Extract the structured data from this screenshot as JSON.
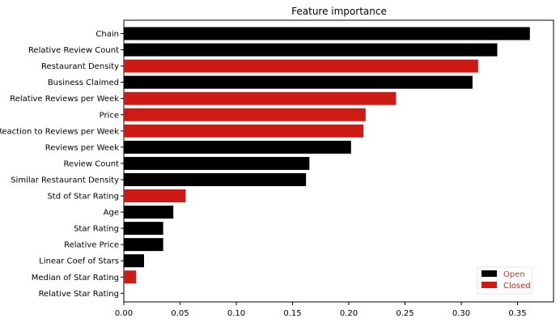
{
  "chart_data": {
    "type": "bar",
    "orientation": "horizontal",
    "title": "Feature importance",
    "xlabel": "",
    "ylabel": "",
    "xlim": [
      0,
      0.37
    ],
    "x_ticks": [
      "0.00",
      "0.05",
      "0.10",
      "0.15",
      "0.20",
      "0.25",
      "0.30",
      "0.35"
    ],
    "grid": false,
    "legend_position": "bottom-right",
    "series": [
      {
        "name": "Open",
        "color": "#000000"
      },
      {
        "name": "Closed",
        "color": "#cc1a14"
      }
    ],
    "categories": [
      "Chain",
      "Relative Review Count",
      "Restaurant Density",
      "Business Claimed",
      "Relative Reviews per Week",
      "Price",
      "Reaction to Reviews per Week",
      "Reviews per Week",
      "Review Count",
      "Similar Restaurant Density",
      "Std of Star Rating",
      "Age",
      "Star Rating",
      "Relative Price",
      "Linear Coef of Stars",
      "Median of Star Rating",
      "Relative Star Rating"
    ],
    "values": [
      0.361,
      0.332,
      0.315,
      0.31,
      0.242,
      0.215,
      0.213,
      0.202,
      0.165,
      0.162,
      0.055,
      0.044,
      0.035,
      0.035,
      0.018,
      0.011,
      0.0
    ],
    "bar_series": [
      "Open",
      "Open",
      "Closed",
      "Open",
      "Closed",
      "Closed",
      "Closed",
      "Open",
      "Open",
      "Open",
      "Closed",
      "Open",
      "Open",
      "Open",
      "Open",
      "Closed",
      "Open"
    ]
  }
}
